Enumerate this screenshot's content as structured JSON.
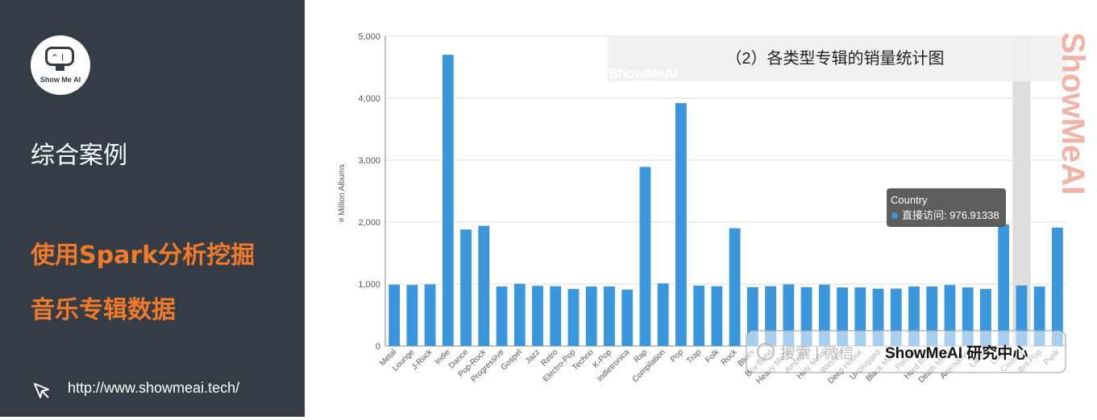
{
  "sidebar": {
    "logo_text": "Show Me AI",
    "section_title": "综合案例",
    "subtitle_line1": "使用Spark分析挖掘",
    "subtitle_line2": "音乐专辑数据",
    "url": "http://www.showmeai.tech/",
    "accent_color": "#f07a2a",
    "background_color": "#343c45"
  },
  "banner": {
    "title": "（2）各类型专辑的销量统计图",
    "watermark_small": "ShowMeAI",
    "watermark_vertical": "ShowMeAI"
  },
  "footer_box": {
    "faded_text": "搜索 | 微信",
    "brand": "ShowMeAI 研究中心"
  },
  "tooltip": {
    "category": "Country",
    "series_label": "直接访问",
    "value": "976.91338"
  },
  "chart_data": {
    "type": "bar",
    "ylabel": "# Million Albums",
    "xlabel": "",
    "ylim": [
      0,
      5000
    ],
    "yticks": [
      "0",
      "1,000",
      "2,000",
      "3,000",
      "4,000",
      "5,000"
    ],
    "grid": true,
    "highlighted_category": "Country",
    "bar_color": "#3a96dd",
    "categories": [
      "Metal",
      "Lounge",
      "J-Rock",
      "Indie",
      "Dance",
      "Pop-Rock",
      "Progressive",
      "Gospel",
      "Jazz",
      "Retro",
      "Electro-Pop",
      "Techno",
      "K-Pop",
      "Indietronica",
      "Rap",
      "Compilation",
      "Pop",
      "Trap",
      "Folk",
      "Rock",
      "Blues",
      "Boy Band",
      "Heavy Metal",
      "Ambient",
      "Holy Metal",
      "Western",
      "Deep House",
      "Unplugged",
      "Black Metal",
      "Parody",
      "Hard Rock",
      "Death Metal",
      "Alternative",
      "Latino",
      "Latin",
      "Country",
      "Brit-Pop",
      "Punk"
    ],
    "values": [
      990,
      985,
      995,
      4700,
      1880,
      1940,
      960,
      1005,
      970,
      965,
      920,
      960,
      960,
      910,
      2890,
      1010,
      3920,
      975,
      965,
      1900,
      950,
      965,
      995,
      950,
      990,
      945,
      945,
      925,
      925,
      960,
      960,
      985,
      945,
      920,
      1960,
      977,
      960,
      1910
    ]
  }
}
